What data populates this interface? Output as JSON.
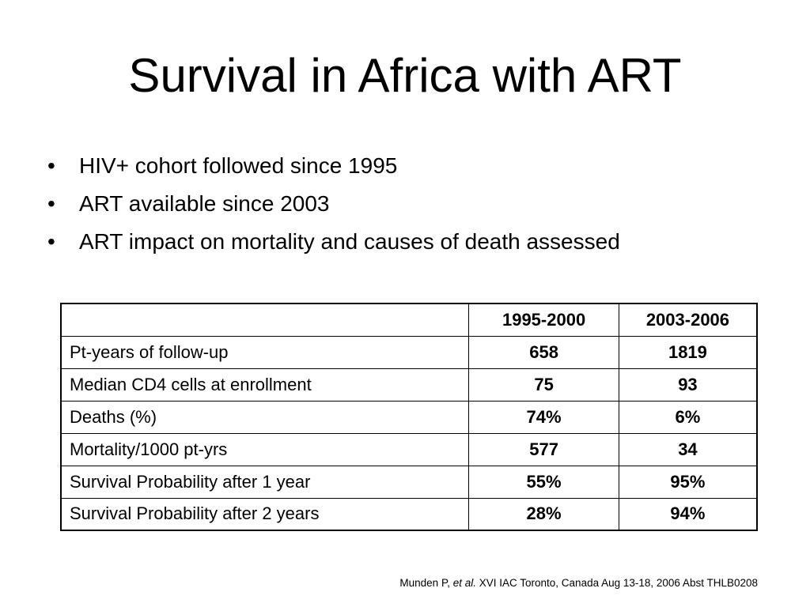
{
  "slide": {
    "title": "Survival in Africa with ART",
    "bullet_glyph": "•",
    "bullets": [
      "HIV+ cohort followed since 1995",
      "ART available since 2003",
      "ART impact on mortality and causes of death assessed"
    ]
  },
  "table": {
    "headers": [
      "",
      "1995-2000",
      "2003-2006"
    ],
    "rows": [
      {
        "label": "Pt-years of follow-up",
        "v1": "658",
        "v2": "1819"
      },
      {
        "label": "Median CD4 cells at enrollment",
        "v1": "75",
        "v2": "93"
      },
      {
        "label": "Deaths (%)",
        "v1": "74%",
        "v2": "6%"
      },
      {
        "label": "Mortality/1000 pt-yrs",
        "v1": "577",
        "v2": "34"
      },
      {
        "label": "Survival Probability after 1 year",
        "v1": "55%",
        "v2": "95%"
      },
      {
        "label": "Survival Probability after 2 years",
        "v1": "28%",
        "v2": "94%"
      }
    ]
  },
  "citation": {
    "author": "Munden P, ",
    "etal": "et al.",
    "rest": " XVI IAC Toronto, Canada Aug 13-18, 2006 Abst THLB0208"
  }
}
